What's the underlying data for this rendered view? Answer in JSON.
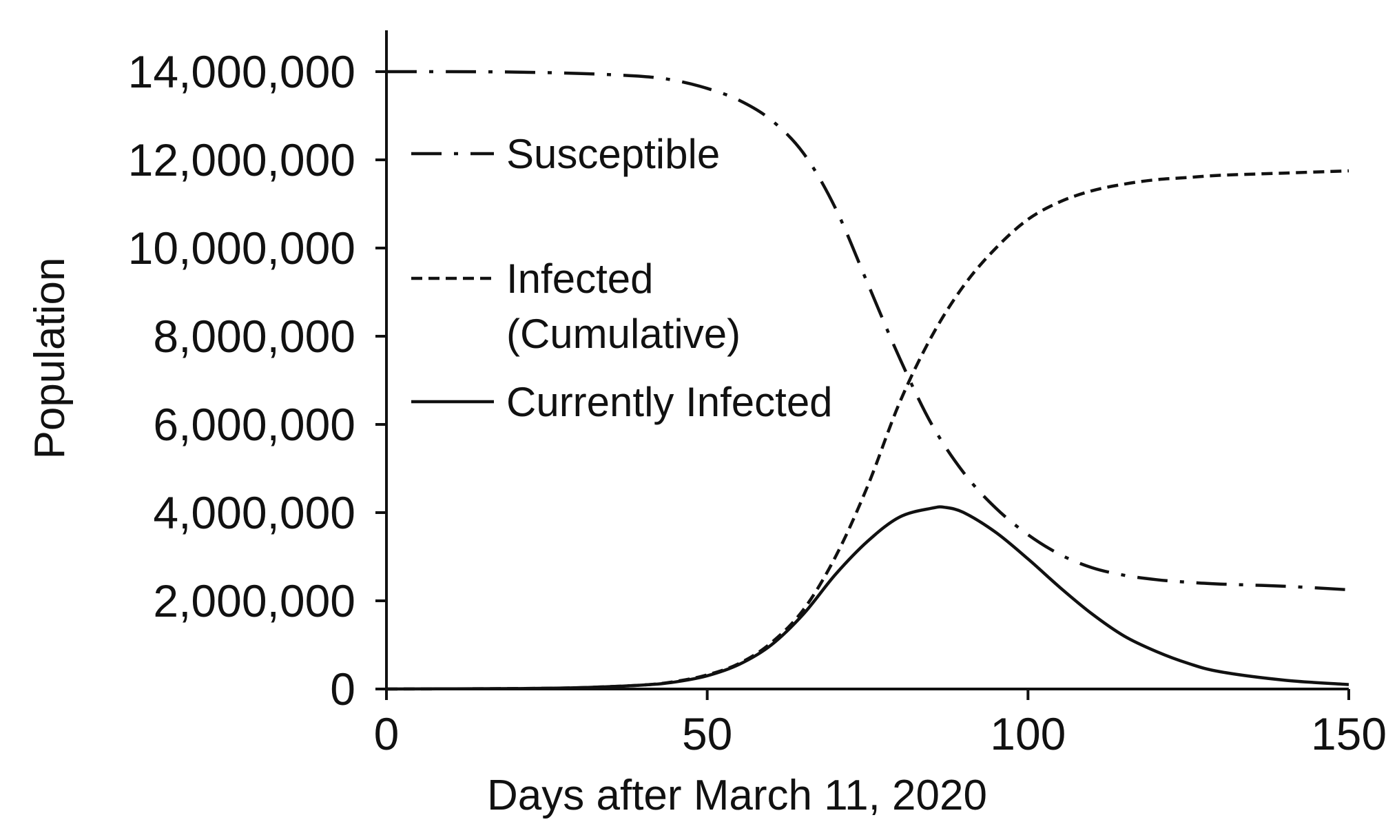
{
  "chart_data": {
    "type": "line",
    "xlabel": "Days after March 11, 2020",
    "ylabel": "Population",
    "xlim": [
      0,
      150
    ],
    "ylim": [
      0,
      15000000
    ],
    "x_ticks": [
      0,
      50,
      100,
      150
    ],
    "x_tick_labels": [
      "0",
      "50",
      "100",
      "150"
    ],
    "y_ticks": [
      0,
      2000000,
      4000000,
      6000000,
      8000000,
      10000000,
      12000000,
      14000000
    ],
    "y_tick_labels": [
      "0",
      "2,000,000",
      "4,000,000",
      "6,000,000",
      "8,000,000",
      "10,000,000",
      "12,000,000",
      "14,000,000"
    ],
    "grid": false,
    "legend_position": "upper-left",
    "series": [
      {
        "name": "Susceptible",
        "line_style": "dash-dot",
        "color": "#111111",
        "x": [
          0,
          10,
          20,
          30,
          40,
          45,
          50,
          55,
          60,
          65,
          70,
          75,
          80,
          85,
          90,
          95,
          100,
          105,
          110,
          115,
          120,
          125,
          130,
          140,
          150
        ],
        "y": [
          14000000,
          14000000,
          13990000,
          13960000,
          13890000,
          13800000,
          13620000,
          13350000,
          12900000,
          12150000,
          10900000,
          9200000,
          7500000,
          6000000,
          4900000,
          4100000,
          3500000,
          3050000,
          2750000,
          2580000,
          2480000,
          2420000,
          2380000,
          2330000,
          2250000
        ]
      },
      {
        "name": "Infected (Cumulative)",
        "line_style": "dashed",
        "color": "#111111",
        "x": [
          0,
          20,
          30,
          40,
          45,
          50,
          55,
          60,
          65,
          70,
          75,
          80,
          85,
          90,
          95,
          100,
          105,
          110,
          115,
          120,
          125,
          130,
          140,
          150
        ],
        "y": [
          0,
          10000,
          30000,
          90000,
          170000,
          320000,
          580000,
          1050000,
          1800000,
          3000000,
          4600000,
          6500000,
          8000000,
          9150000,
          10000000,
          10650000,
          11050000,
          11300000,
          11450000,
          11550000,
          11600000,
          11650000,
          11700000,
          11750000
        ]
      },
      {
        "name": "Currently Infected",
        "line_style": "solid",
        "color": "#111111",
        "x": [
          0,
          20,
          30,
          40,
          45,
          50,
          55,
          60,
          65,
          70,
          75,
          80,
          85,
          87,
          90,
          95,
          100,
          105,
          110,
          115,
          120,
          125,
          130,
          140,
          150
        ],
        "y": [
          0,
          10000,
          30000,
          90000,
          160000,
          300000,
          560000,
          1000000,
          1700000,
          2600000,
          3350000,
          3900000,
          4100000,
          4120000,
          4000000,
          3550000,
          2950000,
          2300000,
          1700000,
          1200000,
          850000,
          580000,
          390000,
          200000,
          100000
        ]
      }
    ]
  }
}
